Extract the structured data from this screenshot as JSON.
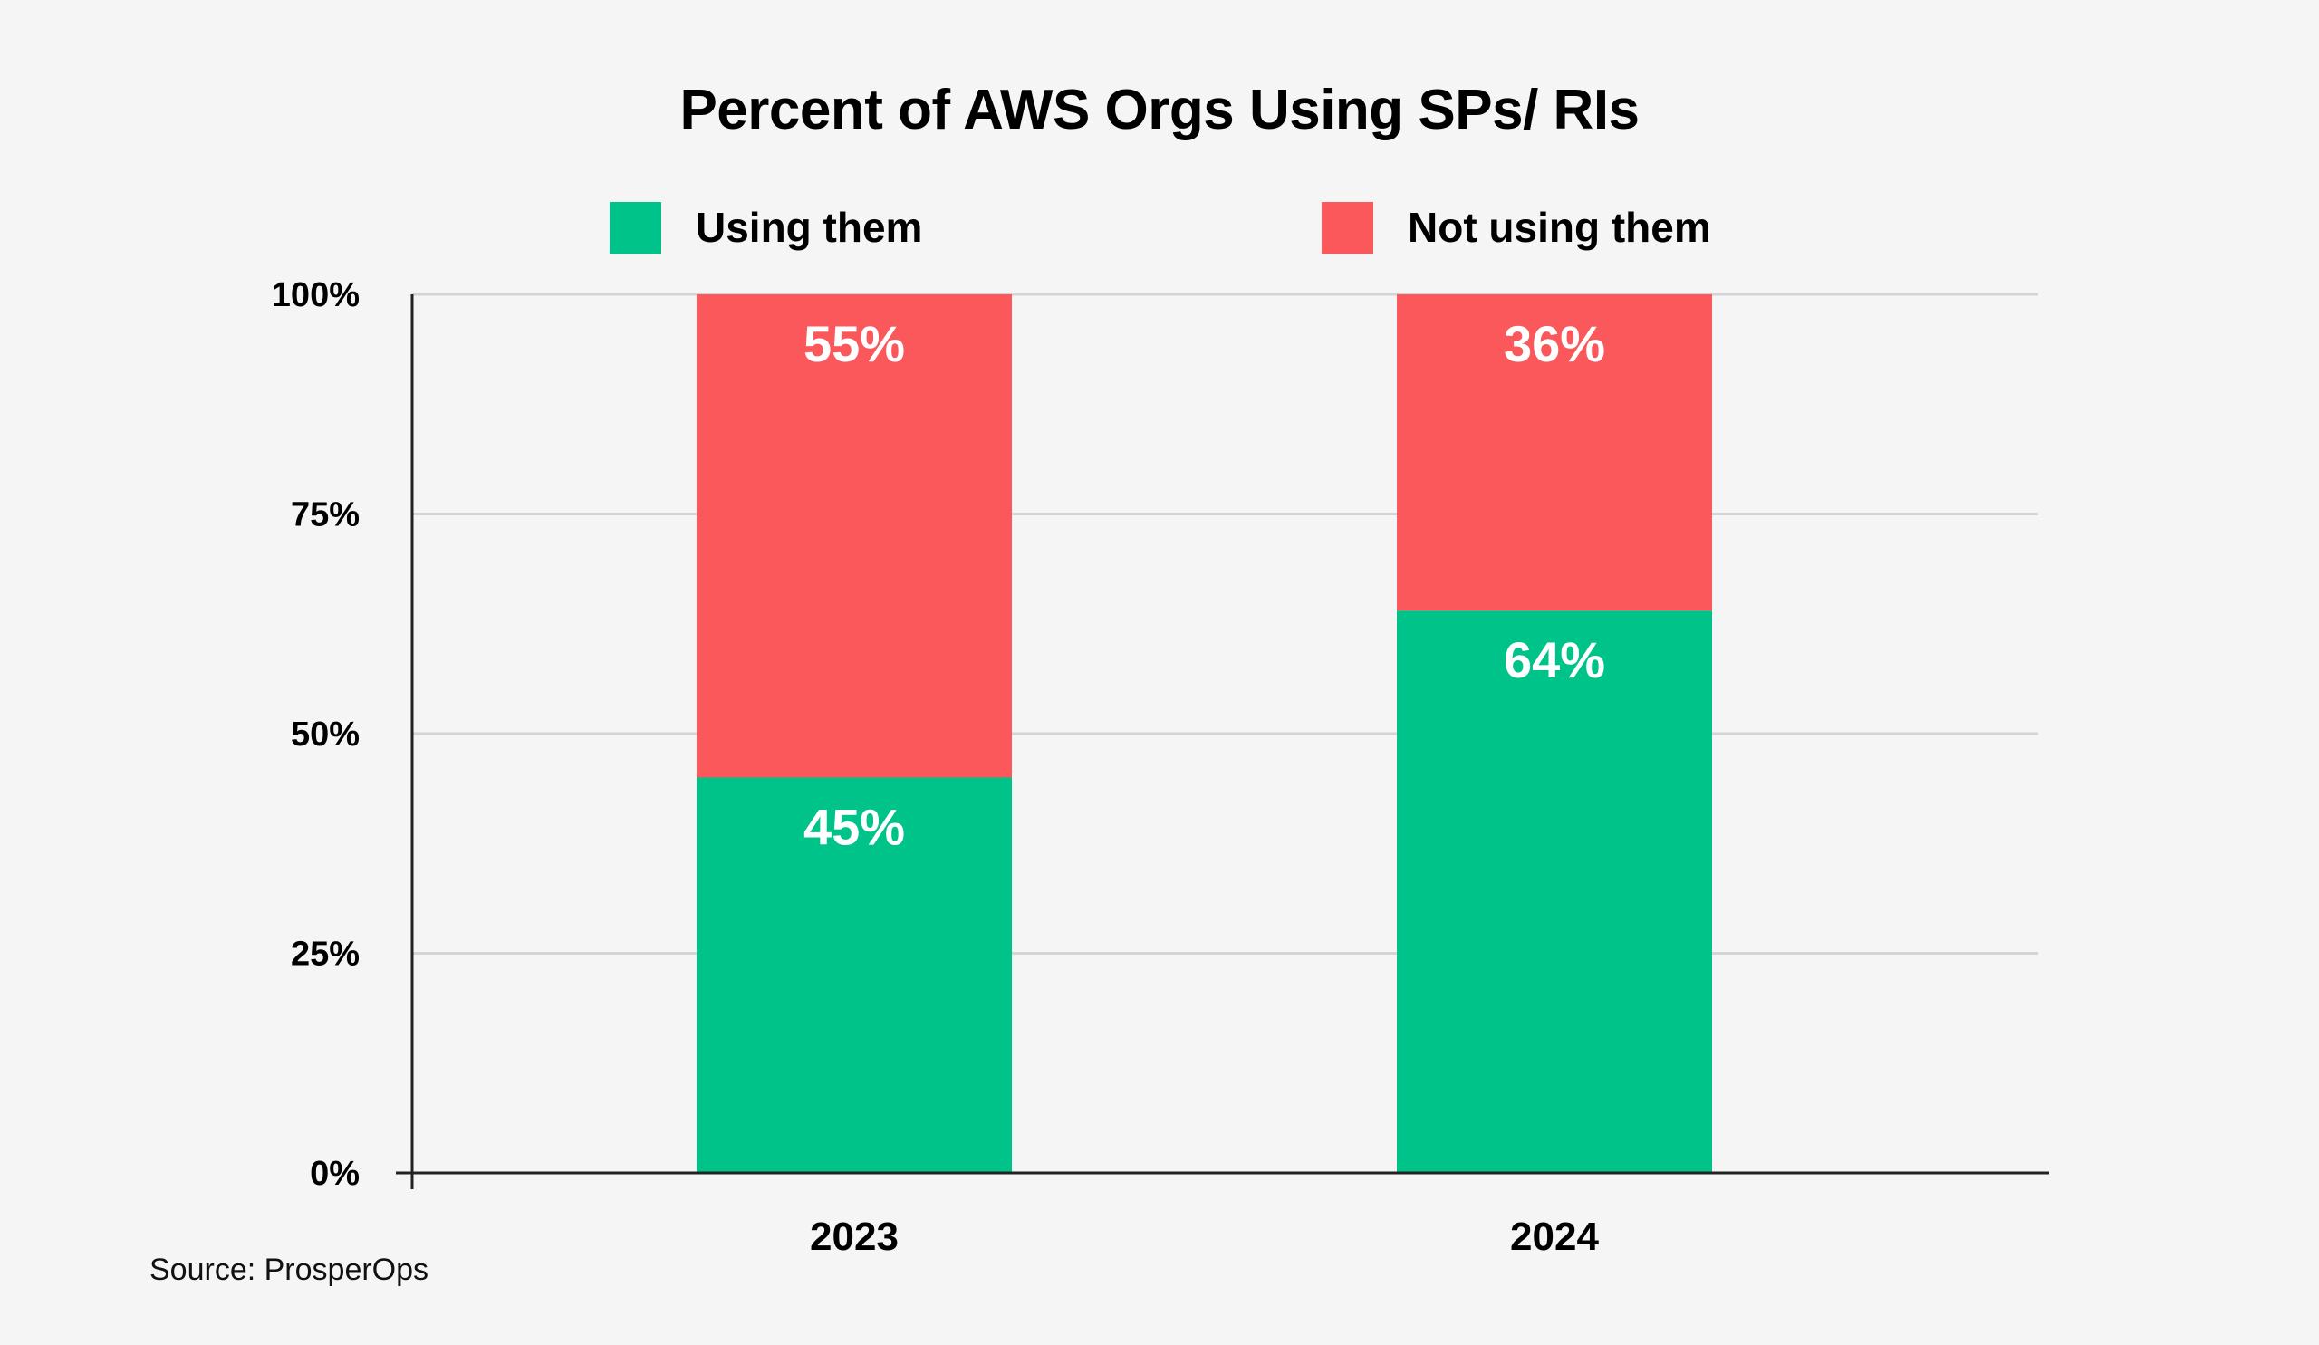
{
  "chart_data": {
    "type": "bar",
    "stacked": true,
    "title": "Percent of AWS Orgs Using SPs/ RIs",
    "xlabel": "",
    "ylabel": "",
    "categories": [
      "2023",
      "2024"
    ],
    "series": [
      {
        "name": "Using them",
        "values": [
          45,
          64
        ],
        "labels": [
          "45%",
          "64%"
        ],
        "color": "#00c389"
      },
      {
        "name": "Not using them",
        "values": [
          55,
          36
        ],
        "labels": [
          "55%",
          "36%"
        ],
        "color": "#fa585a"
      }
    ],
    "ylim": [
      0,
      100
    ],
    "yticks": [
      0,
      25,
      50,
      75,
      100
    ],
    "ytick_labels": [
      "0%",
      "25%",
      "50%",
      "75%",
      "100%"
    ],
    "grid": true,
    "legend_position": "top-center",
    "colors": {
      "background": "#f5f5f5",
      "gridline": "#d4d4d4",
      "axis": "#222222",
      "bar_label": "#ffffff"
    }
  },
  "source": "Source: ProsperOps"
}
